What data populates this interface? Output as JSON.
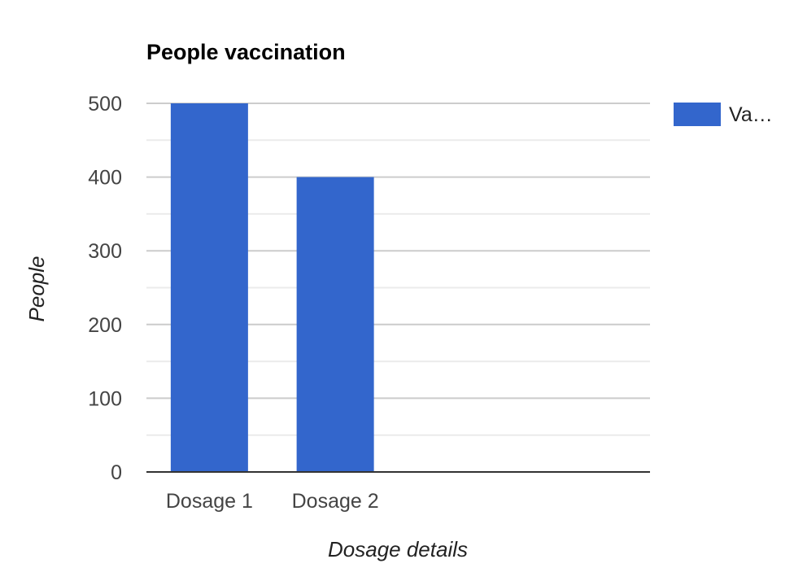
{
  "chart_data": {
    "type": "bar",
    "title": "People vaccination",
    "xlabel": "Dosage details",
    "ylabel": "People",
    "categories": [
      "Dosage 1",
      "Dosage 2",
      "",
      ""
    ],
    "series": [
      {
        "name": "Va…",
        "values": [
          500,
          400,
          0,
          0
        ],
        "color": "#3366cc"
      }
    ],
    "ylim": [
      0,
      500
    ],
    "yticks": [
      0,
      100,
      200,
      300,
      400,
      500
    ],
    "ytick_labels": [
      "0",
      "100",
      "200",
      "300",
      "400",
      "500"
    ],
    "grid": true,
    "legend": "right"
  }
}
